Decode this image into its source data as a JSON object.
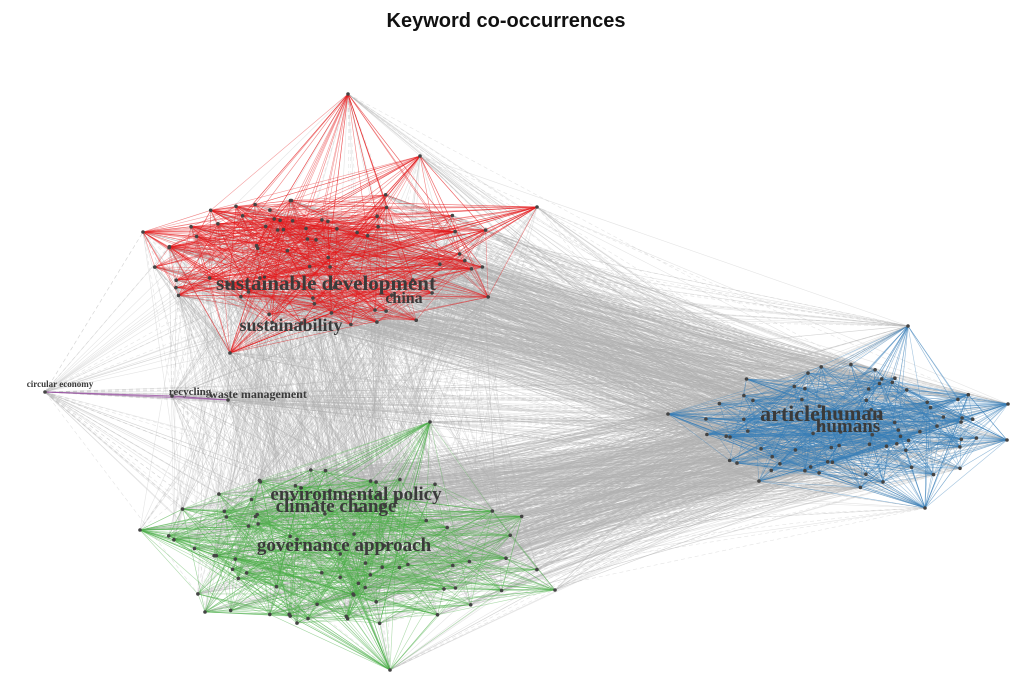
{
  "title": "Keyword co-occurrences",
  "colors": {
    "background": "#ffffff",
    "inter_edge": "#b3b3b3",
    "node_fill": "#444444"
  },
  "clusters": [
    {
      "id": "red",
      "color": "#e41a1c",
      "labels": [
        "sustainable development",
        "china",
        "sustainability"
      ]
    },
    {
      "id": "purple",
      "color": "#984ea3",
      "labels": [
        "circular economy",
        "recycling",
        "waste management"
      ]
    },
    {
      "id": "green",
      "color": "#4daf4a",
      "labels": [
        "environmental policy",
        "climate change",
        "governance approach"
      ]
    },
    {
      "id": "blue",
      "color": "#377eb8",
      "labels": [
        "article",
        "human",
        "humans"
      ]
    }
  ]
}
